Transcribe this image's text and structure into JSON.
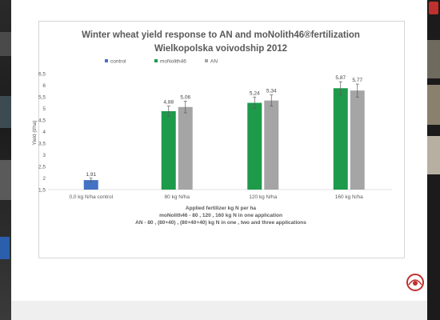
{
  "chart_data": {
    "type": "bar",
    "title": "Winter wheat yield response to AN and moNolith46®fertilization",
    "subtitle": "Wielkopolska voivodship 2012",
    "ylabel": "Yield (t/ha)",
    "xlabel_lines": [
      "Applied fertilizer kg N per ha",
      "moNolith46 - 80 , 120 , 160 kg N in one application",
      "AN - 80 , (80+40) , (80+40+40) kg N in one , two and three applications"
    ],
    "ylim": [
      1.5,
      6.5
    ],
    "yticks": [
      1.5,
      2,
      2.5,
      3,
      3.5,
      4,
      4.5,
      5,
      5.5,
      6,
      6.5
    ],
    "ytick_labels": [
      "1,5",
      "2",
      "2,5",
      "3",
      "3,5",
      "4",
      "4,5",
      "5",
      "5,5",
      "6",
      "6,5"
    ],
    "categories": [
      "0,0 kg N/ha control",
      "80 kg N/ha",
      "120 kg N/ha",
      "160 kg N/ha"
    ],
    "legend_position": "top",
    "series": [
      {
        "name": "control",
        "color": "#4472c4",
        "values": [
          1.91,
          null,
          null,
          null
        ],
        "labels": [
          "1,91",
          null,
          null,
          null
        ],
        "errors": [
          0.08,
          null,
          null,
          null
        ]
      },
      {
        "name": "moNolith46",
        "color": "#1e9a4b",
        "values": [
          null,
          4.88,
          5.24,
          5.87
        ],
        "labels": [
          null,
          "4,88",
          "5,24",
          "5,87"
        ],
        "errors": [
          null,
          0.22,
          0.25,
          0.28
        ]
      },
      {
        "name": "AN",
        "color": "#a5a5a5",
        "values": [
          null,
          5.06,
          5.34,
          5.77
        ],
        "labels": [
          null,
          "5,06",
          "5,34",
          "5,77"
        ],
        "errors": [
          null,
          0.25,
          0.24,
          0.28
        ]
      }
    ],
    "grid": false,
    "error_bars": true
  }
}
